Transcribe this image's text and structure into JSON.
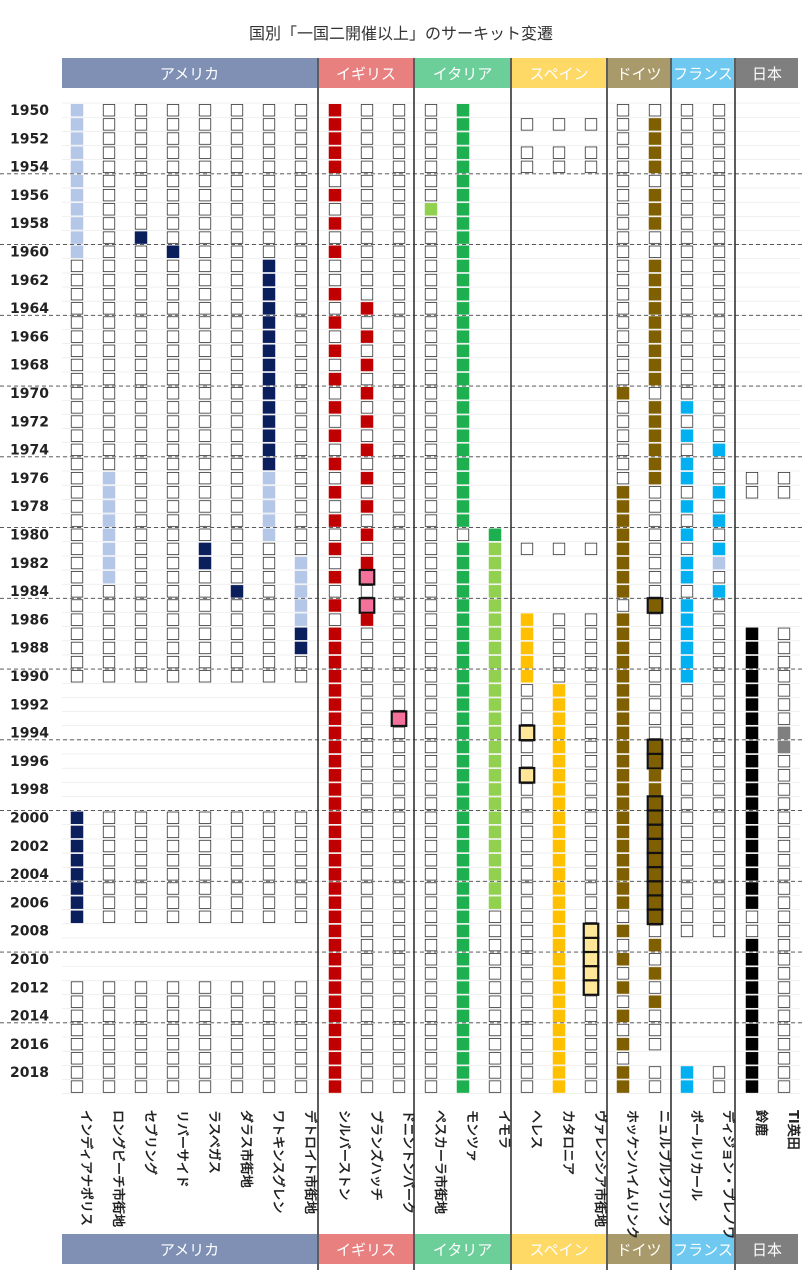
{
  "title": "国別「一国二開催以上」のサーキット変遷",
  "chart_data": {
    "type": "heatmap",
    "title": "国別「一国二開催以上」のサーキット変遷",
    "year_range": [
      1950,
      2019
    ],
    "year_labels": [
      "1950",
      "1952",
      "1954",
      "1956",
      "1958",
      "1960",
      "1962",
      "1964",
      "1966",
      "1968",
      "1970",
      "1972",
      "1974",
      "1976",
      "1978",
      "1980",
      "1982",
      "1984",
      "1986",
      "1988",
      "1990",
      "1992",
      "1994",
      "1996",
      "1998",
      "2000",
      "2002",
      "2004",
      "2006",
      "2008",
      "2010",
      "2012",
      "2014",
      "2016",
      "2018"
    ],
    "countries": [
      {
        "name": "アメリカ",
        "color": "#7f90b4",
        "columns": [
          0,
          1,
          2,
          3,
          4,
          5,
          6,
          7
        ]
      },
      {
        "name": "イギリス",
        "color": "#e98080",
        "columns": [
          8,
          9,
          10
        ]
      },
      {
        "name": "イタリア",
        "color": "#6ccf9a",
        "columns": [
          11,
          12,
          13
        ]
      },
      {
        "name": "スペイン",
        "color": "#ffd966",
        "columns": [
          14,
          15,
          16
        ]
      },
      {
        "name": "ドイツ",
        "color": "#a99a6c",
        "columns": [
          17,
          18
        ]
      },
      {
        "name": "フランス",
        "color": "#6ec8f0",
        "columns": [
          19,
          20
        ]
      },
      {
        "name": "日本",
        "color": "#7f7f7f",
        "columns": [
          21,
          22
        ]
      }
    ],
    "circuits": [
      {
        "name": "インディアナポリス",
        "color": "#b4c7e7",
        "held": [
          [
            1950,
            1960
          ],
          [
            2000,
            2007
          ]
        ],
        "alt": [
          {
            "range": [
              2000,
              2007
            ],
            "color": "#0b1f5c"
          }
        ],
        "outline": [
          [
            1961,
            1990
          ],
          [
            2012,
            2019
          ]
        ],
        "highlight": []
      },
      {
        "name": "ロングビーチ市街地",
        "color": "#b4c7e7",
        "held": [
          [
            1976,
            1983
          ]
        ],
        "alt": [],
        "outline": [
          [
            1950,
            1975
          ],
          [
            1984,
            1990
          ],
          [
            2000,
            2007
          ],
          [
            2012,
            2019
          ]
        ],
        "highlight": []
      },
      {
        "name": "セブリング",
        "color": "#0b1f5c",
        "held": [
          [
            1959,
            1959
          ]
        ],
        "alt": [],
        "outline": [
          [
            1950,
            1958
          ],
          [
            1960,
            1990
          ],
          [
            2000,
            2007
          ],
          [
            2012,
            2019
          ]
        ],
        "highlight": []
      },
      {
        "name": "リバーサイド",
        "color": "#0b1f5c",
        "held": [
          [
            1960,
            1960
          ]
        ],
        "alt": [],
        "outline": [
          [
            1950,
            1959
          ],
          [
            1961,
            1990
          ],
          [
            2000,
            2007
          ],
          [
            2012,
            2019
          ]
        ],
        "highlight": []
      },
      {
        "name": "ラスベガス",
        "color": "#0b1f5c",
        "held": [
          [
            1981,
            1982
          ]
        ],
        "alt": [],
        "outline": [
          [
            1950,
            1980
          ],
          [
            1983,
            1990
          ],
          [
            2000,
            2007
          ],
          [
            2012,
            2019
          ]
        ],
        "highlight": []
      },
      {
        "name": "ダラス市街地",
        "color": "#0b1f5c",
        "held": [
          [
            1984,
            1984
          ]
        ],
        "alt": [],
        "outline": [
          [
            1950,
            1983
          ],
          [
            1985,
            1990
          ],
          [
            2000,
            2007
          ],
          [
            2012,
            2019
          ]
        ],
        "highlight": []
      },
      {
        "name": "ワトキンスグレン",
        "color": "#0b1f5c",
        "held": [
          [
            1961,
            1975
          ],
          [
            1976,
            1980
          ]
        ],
        "alt": [
          {
            "range": [
              1976,
              1980
            ],
            "color": "#b4c7e7"
          }
        ],
        "outline": [
          [
            1950,
            1960
          ],
          [
            1981,
            1990
          ],
          [
            2000,
            2007
          ],
          [
            2012,
            2019
          ]
        ],
        "highlight": []
      },
      {
        "name": "デトロイト市街地",
        "color": "#b4c7e7",
        "held": [
          [
            1982,
            1988
          ]
        ],
        "alt": [
          {
            "range": [
              1987,
              1988
            ],
            "color": "#0b1f5c"
          }
        ],
        "outline": [
          [
            1950,
            1981
          ],
          [
            1989,
            1990
          ],
          [
            2000,
            2007
          ],
          [
            2012,
            2019
          ]
        ],
        "highlight": []
      },
      {
        "name": "シルバーストン",
        "color": "#c00000",
        "held": [
          [
            1950,
            1954
          ],
          [
            1956,
            1956
          ],
          [
            1958,
            1958
          ],
          [
            1960,
            1960
          ],
          [
            1963,
            1963
          ],
          [
            1965,
            1965
          ],
          [
            1967,
            1967
          ],
          [
            1969,
            1969
          ],
          [
            1971,
            1971
          ],
          [
            1973,
            1973
          ],
          [
            1975,
            1975
          ],
          [
            1977,
            1977
          ],
          [
            1979,
            1979
          ],
          [
            1981,
            1981
          ],
          [
            1983,
            1983
          ],
          [
            1985,
            1985
          ],
          [
            1987,
            2019
          ]
        ],
        "alt": [],
        "outline": [
          [
            1950,
            2019
          ]
        ],
        "highlight": []
      },
      {
        "name": "ブランズハッチ",
        "color": "#c00000",
        "held": [
          [
            1964,
            1964
          ],
          [
            1966,
            1966
          ],
          [
            1968,
            1968
          ],
          [
            1970,
            1970
          ],
          [
            1972,
            1972
          ],
          [
            1974,
            1974
          ],
          [
            1976,
            1976
          ],
          [
            1978,
            1978
          ],
          [
            1980,
            1980
          ],
          [
            1982,
            1982
          ],
          [
            1983,
            1983
          ],
          [
            1985,
            1985
          ],
          [
            1986,
            1986
          ]
        ],
        "alt": [
          {
            "range": [
              1983,
              1983
            ],
            "color": "#f4719b"
          },
          {
            "range": [
              1985,
              1985
            ],
            "color": "#f4719b"
          }
        ],
        "outline": [
          [
            1950,
            2019
          ]
        ],
        "highlight": [
          1983,
          1985
        ]
      },
      {
        "name": "ドニントンパーク",
        "color": "#f4719b",
        "held": [
          [
            1993,
            1993
          ]
        ],
        "alt": [],
        "outline": [
          [
            1950,
            2019
          ]
        ],
        "highlight": [
          1993
        ]
      },
      {
        "name": "ペスカーラ市街地",
        "color": "#92d050",
        "held": [
          [
            1957,
            1957
          ]
        ],
        "alt": [],
        "outline": [
          [
            1950,
            2019
          ]
        ],
        "highlight": []
      },
      {
        "name": "モンツァ",
        "color": "#1eb050",
        "held": [
          [
            1950,
            1979
          ],
          [
            1981,
            2019
          ]
        ],
        "alt": [],
        "outline": [
          [
            1950,
            2019
          ]
        ],
        "highlight": []
      },
      {
        "name": "イモラ",
        "color": "#92d050",
        "held": [
          [
            1980,
            1980
          ],
          [
            1981,
            2006
          ]
        ],
        "alt": [
          {
            "range": [
              1980,
              1980
            ],
            "color": "#1eb050"
          }
        ],
        "outline": [
          [
            1980,
            2019
          ]
        ],
        "highlight": []
      },
      {
        "name": "ヘレス",
        "color": "#ffc000",
        "held": [
          [
            1986,
            1990
          ],
          [
            1994,
            1994
          ],
          [
            1997,
            1997
          ]
        ],
        "alt": [
          {
            "range": [
              1994,
              1994
            ],
            "color": "#ffe699"
          },
          {
            "range": [
              1997,
              1997
            ],
            "color": "#ffe699"
          }
        ],
        "outline": [
          [
            1951,
            1951
          ],
          [
            1953,
            1953
          ],
          [
            1954,
            1954
          ],
          [
            1981,
            1981
          ],
          [
            1986,
            2019
          ]
        ],
        "highlight": [
          1994,
          1997
        ]
      },
      {
        "name": "カタロニア",
        "color": "#ffc000",
        "held": [
          [
            1991,
            2019
          ]
        ],
        "alt": [],
        "outline": [
          [
            1951,
            1951
          ],
          [
            1953,
            1953
          ],
          [
            1954,
            1954
          ],
          [
            1981,
            1981
          ],
          [
            1986,
            2019
          ]
        ],
        "highlight": []
      },
      {
        "name": "ヴァレンシア市街地",
        "color": "#ffe699",
        "held": [
          [
            2008,
            2012
          ]
        ],
        "alt": [],
        "outline": [
          [
            1951,
            1951
          ],
          [
            1953,
            1953
          ],
          [
            1954,
            1954
          ],
          [
            1981,
            1981
          ],
          [
            1986,
            2019
          ]
        ],
        "highlight": [
          2008,
          2009,
          2010,
          2011,
          2012
        ]
      },
      {
        "name": "ホッケンハイムリンク",
        "color": "#7f5f00",
        "held": [
          [
            1970,
            1970
          ],
          [
            1977,
            1984
          ],
          [
            1986,
            2006
          ],
          [
            2008,
            2008
          ],
          [
            2010,
            2010
          ],
          [
            2012,
            2012
          ],
          [
            2014,
            2014
          ],
          [
            2016,
            2016
          ],
          [
            2018,
            2019
          ]
        ],
        "alt": [],
        "outline": [
          [
            1950,
            2019
          ]
        ],
        "highlight": []
      },
      {
        "name": "ニュルブルクリンク",
        "color": "#7f5f00",
        "held": [
          [
            1951,
            1954
          ],
          [
            1956,
            1958
          ],
          [
            1961,
            1969
          ],
          [
            1971,
            1976
          ],
          [
            1985,
            1985
          ],
          [
            1995,
            1996
          ],
          [
            1997,
            2007
          ],
          [
            2009,
            2009
          ],
          [
            2011,
            2011
          ],
          [
            2013,
            2013
          ]
        ],
        "alt": [],
        "outline": [
          [
            1950,
            2016
          ],
          [
            2018,
            2019
          ]
        ],
        "highlight": [
          1985,
          1995,
          1996,
          1999,
          2000,
          2001,
          2002,
          2003,
          2004,
          2005,
          2006,
          2007
        ]
      },
      {
        "name": "ポールリカール",
        "color": "#00b0f0",
        "held": [
          [
            1971,
            1971
          ],
          [
            1973,
            1973
          ],
          [
            1975,
            1975
          ],
          [
            1976,
            1976
          ],
          [
            1978,
            1978
          ],
          [
            1980,
            1980
          ],
          [
            1982,
            1982
          ],
          [
            1983,
            1983
          ],
          [
            1985,
            1990
          ],
          [
            2018,
            2019
          ]
        ],
        "alt": [],
        "outline": [
          [
            1950,
            2008
          ],
          [
            2018,
            2019
          ]
        ],
        "highlight": []
      },
      {
        "name": "ディジョン・プレノワ",
        "color": "#00b0f0",
        "held": [
          [
            1974,
            1974
          ],
          [
            1977,
            1977
          ],
          [
            1979,
            1979
          ],
          [
            1981,
            1981
          ],
          [
            1982,
            1982
          ],
          [
            1984,
            1984
          ]
        ],
        "alt": [
          {
            "range": [
              1982,
              1982
            ],
            "color": "#b4c7e7"
          }
        ],
        "outline": [
          [
            1950,
            2008
          ],
          [
            2018,
            2019
          ]
        ],
        "highlight": []
      },
      {
        "name": "鈴鹿",
        "color": "#000000",
        "held": [
          [
            1987,
            2006
          ],
          [
            2009,
            2019
          ]
        ],
        "alt": [],
        "outline": [
          [
            1976,
            1977
          ],
          [
            1987,
            2019
          ]
        ],
        "highlight": []
      },
      {
        "name": "TI英田",
        "color": "#7f7f7f",
        "held": [
          [
            1994,
            1995
          ]
        ],
        "alt": [],
        "outline": [
          [
            1976,
            1977
          ],
          [
            1987,
            2019
          ]
        ],
        "highlight": []
      }
    ]
  }
}
